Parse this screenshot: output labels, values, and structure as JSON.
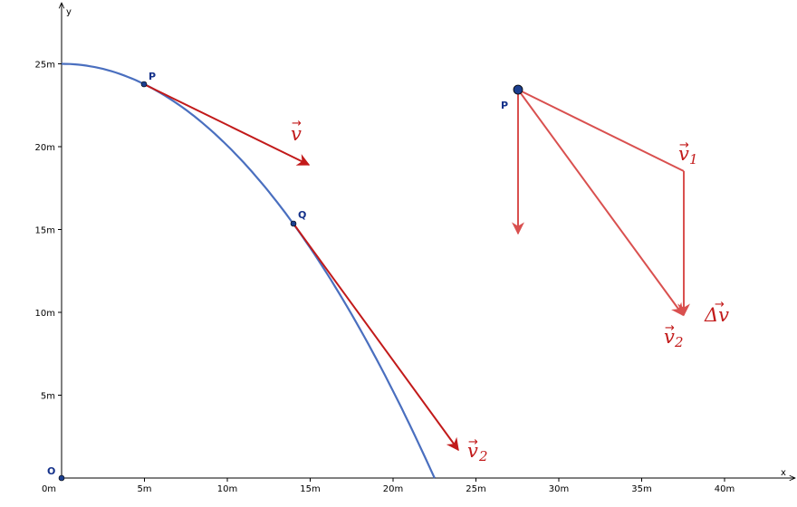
{
  "axes": {
    "x_label": "x",
    "y_label": "y",
    "origin_label": "O",
    "x_ticks": [
      "0m",
      "5m",
      "10m",
      "15m",
      "20m",
      "25m",
      "30m",
      "35m",
      "40m"
    ],
    "y_ticks": [
      "5m",
      "10m",
      "15m",
      "20m",
      "25m"
    ]
  },
  "curve": {
    "color": "#4a6fbf",
    "description_points": [
      [
        0,
        25
      ],
      [
        5,
        23.8
      ],
      [
        14,
        15.4
      ],
      [
        22.5,
        0
      ]
    ]
  },
  "left_points": {
    "p_label": "P",
    "q_label": "Q",
    "p": [
      5,
      23.8
    ],
    "q": [
      14,
      15.4
    ]
  },
  "right_diagram": {
    "p_label": "P",
    "p": [
      27.5,
      23.5
    ],
    "v1_tip": [
      37.5,
      18.5
    ],
    "v2_tip": [
      37.5,
      9.5
    ],
    "g_tip": [
      27.5,
      14.8
    ]
  },
  "vector_labels": {
    "v": "v",
    "v2_base": "v",
    "v2_sub": "2",
    "v1_base": "v",
    "v1_sub": "1",
    "dv_base": "Δv",
    "v2b_base": "v",
    "v2b_sub": "2"
  },
  "colors": {
    "dark_red": "#c21a1a",
    "light_red": "#d9504f",
    "point_fill": "#1c3f8f"
  }
}
